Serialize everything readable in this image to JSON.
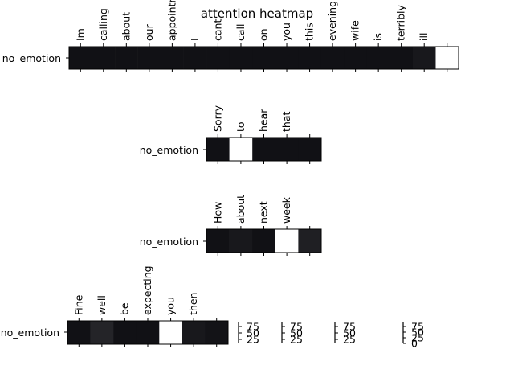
{
  "chart_data": {
    "type": "heatmap",
    "title": "attention heatmap",
    "panels": [
      {
        "row_label": "no_emotion",
        "tokens": [
          "Im",
          "calling",
          "about",
          "our",
          "appointment",
          "I",
          "cant",
          "call",
          "on",
          "you",
          "this",
          "evening",
          "wife",
          "is",
          "terribly",
          "ill",
          ""
        ],
        "values": [
          0.02,
          0.02,
          0.02,
          0.02,
          0.02,
          0.02,
          0.02,
          0.02,
          0.02,
          0.02,
          0.02,
          0.02,
          0.02,
          0.02,
          0.02,
          0.05,
          1.0
        ]
      },
      {
        "row_label": "no_emotion",
        "tokens": [
          "Sorry",
          "to",
          "hear",
          "that",
          ""
        ],
        "values": [
          0.02,
          1.0,
          0.02,
          0.02,
          0.02
        ]
      },
      {
        "row_label": "no_emotion",
        "tokens": [
          "How",
          "about",
          "next",
          "week",
          ""
        ],
        "values": [
          0.02,
          0.05,
          0.02,
          1.0,
          0.08
        ]
      },
      {
        "row_label": "no_emotion",
        "tokens": [
          "Fine",
          "well",
          "be",
          "expecting",
          "you",
          "then",
          ""
        ],
        "values": [
          0.02,
          0.1,
          0.02,
          0.02,
          1.0,
          0.05,
          0.03
        ]
      }
    ],
    "colorbars": [
      {
        "ticks": [
          "75",
          "50",
          "25"
        ]
      },
      {
        "ticks": [
          "75",
          "50",
          "25"
        ]
      },
      {
        "ticks": [
          "75",
          "50",
          "25"
        ]
      },
      {
        "ticks": [
          "75",
          "50",
          "25",
          "0"
        ]
      }
    ]
  }
}
